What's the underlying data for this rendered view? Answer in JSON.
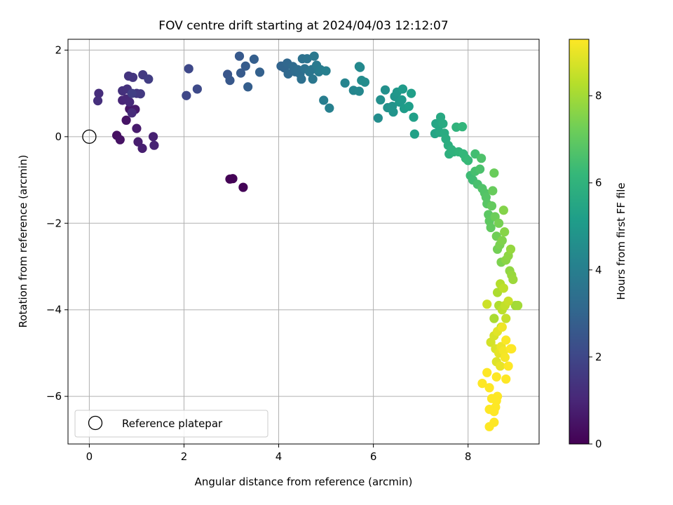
{
  "chart_data": {
    "type": "scatter",
    "title": "FOV centre drift starting at 2024/04/03 12:12:07",
    "xlabel": "Angular distance from reference (arcmin)",
    "ylabel": "Rotation from reference (arcmin)",
    "xlim": [
      -0.45,
      9.5
    ],
    "ylim": [
      -7.1,
      2.25
    ],
    "xticks": [
      0,
      2,
      4,
      6,
      8
    ],
    "yticks": [
      -6,
      -4,
      -2,
      0,
      2
    ],
    "xtick_labels": [
      "0",
      "2",
      "4",
      "6",
      "8"
    ],
    "ytick_labels": [
      "−6",
      "−4",
      "−2",
      "0",
      "2"
    ],
    "grid": true,
    "legend": {
      "placement": "lower-left",
      "entries": [
        {
          "label": "Reference platepar",
          "marker": "open-circle",
          "color": "#000000"
        }
      ]
    },
    "reference_point": {
      "x": 0,
      "y": 0
    },
    "colorbar": {
      "label": "Hours from first FF file",
      "range": [
        0,
        9.3
      ],
      "ticks": [
        0,
        2,
        4,
        6,
        8
      ],
      "tick_labels": [
        "0",
        "2",
        "4",
        "6",
        "8"
      ],
      "colormap": "viridis",
      "colors": [
        "#440154",
        "#482878",
        "#3e4989",
        "#31688e",
        "#26828e",
        "#1f9e89",
        "#35b779",
        "#6ece58",
        "#b5de2b",
        "#fde725"
      ]
    },
    "points": [
      [
        2.97,
        -0.98,
        0.02
      ],
      [
        3.03,
        -0.97,
        0.05
      ],
      [
        3.25,
        -1.17,
        0.08
      ],
      [
        0.58,
        0.03,
        0.4
      ],
      [
        0.65,
        -0.07,
        0.45
      ],
      [
        0.78,
        0.38,
        0.5
      ],
      [
        0.85,
        0.64,
        0.55
      ],
      [
        0.9,
        0.6,
        0.6
      ],
      [
        0.97,
        0.63,
        0.65
      ],
      [
        1.0,
        0.19,
        0.7
      ],
      [
        1.03,
        -0.12,
        0.75
      ],
      [
        1.12,
        -0.27,
        0.8
      ],
      [
        1.35,
        0.0,
        0.85
      ],
      [
        1.37,
        -0.2,
        0.9
      ],
      [
        0.7,
        0.84,
        1.0
      ],
      [
        0.78,
        0.87,
        1.05
      ],
      [
        0.85,
        0.8,
        1.1
      ],
      [
        0.9,
        0.55,
        1.15
      ],
      [
        0.2,
        1.0,
        1.2
      ],
      [
        0.18,
        0.83,
        1.25
      ],
      [
        0.7,
        1.06,
        1.3
      ],
      [
        0.8,
        1.1,
        1.35
      ],
      [
        0.83,
        1.4,
        1.4
      ],
      [
        0.92,
        1.37,
        1.45
      ],
      [
        1.0,
        1.0,
        1.5
      ],
      [
        1.08,
        0.99,
        1.55
      ],
      [
        1.13,
        1.43,
        1.6
      ],
      [
        1.25,
        1.33,
        1.7
      ],
      [
        0.9,
        1.0,
        1.75
      ],
      [
        2.05,
        0.95,
        2.0
      ],
      [
        2.1,
        1.57,
        2.05
      ],
      [
        2.28,
        1.1,
        2.1
      ],
      [
        2.92,
        1.44,
        2.5
      ],
      [
        2.97,
        1.3,
        2.55
      ],
      [
        3.17,
        1.86,
        2.6
      ],
      [
        3.2,
        1.47,
        2.65
      ],
      [
        3.3,
        1.63,
        2.7
      ],
      [
        3.35,
        1.15,
        2.75
      ],
      [
        3.48,
        1.79,
        2.8
      ],
      [
        3.6,
        1.49,
        2.85
      ],
      [
        4.05,
        1.63,
        3.0
      ],
      [
        4.12,
        1.59,
        3.05
      ],
      [
        4.18,
        1.7,
        3.1
      ],
      [
        4.2,
        1.45,
        3.15
      ],
      [
        4.3,
        1.62,
        3.2
      ],
      [
        4.35,
        1.5,
        3.25
      ],
      [
        4.4,
        1.55,
        3.3
      ],
      [
        4.45,
        1.45,
        3.35
      ],
      [
        4.48,
        1.33,
        3.4
      ],
      [
        4.5,
        1.8,
        3.45
      ],
      [
        4.55,
        1.57,
        3.5
      ],
      [
        4.6,
        1.8,
        3.55
      ],
      [
        4.65,
        1.5,
        3.6
      ],
      [
        4.7,
        1.55,
        3.65
      ],
      [
        4.72,
        1.33,
        3.7
      ],
      [
        4.75,
        1.86,
        3.75
      ],
      [
        4.8,
        1.65,
        3.8
      ],
      [
        4.85,
        1.5,
        3.85
      ],
      [
        4.88,
        1.55,
        3.9
      ],
      [
        4.95,
        0.84,
        3.95
      ],
      [
        5.0,
        1.52,
        4.0
      ],
      [
        5.07,
        0.66,
        4.05
      ],
      [
        5.4,
        1.24,
        4.2
      ],
      [
        5.58,
        1.07,
        4.25
      ],
      [
        5.7,
        1.05,
        4.3
      ],
      [
        5.7,
        1.62,
        4.35
      ],
      [
        5.72,
        1.6,
        4.4
      ],
      [
        5.75,
        1.3,
        4.45
      ],
      [
        5.82,
        1.26,
        4.5
      ],
      [
        6.1,
        0.43,
        4.55
      ],
      [
        6.15,
        0.85,
        4.6
      ],
      [
        6.25,
        1.08,
        4.65
      ],
      [
        6.3,
        0.67,
        4.7
      ],
      [
        6.4,
        0.7,
        4.75
      ],
      [
        6.42,
        0.57,
        4.8
      ],
      [
        6.45,
        0.93,
        4.85
      ],
      [
        6.5,
        1.03,
        4.9
      ],
      [
        6.55,
        0.8,
        4.95
      ],
      [
        6.6,
        0.85,
        5.0
      ],
      [
        6.62,
        1.1,
        5.05
      ],
      [
        6.65,
        0.65,
        5.1
      ],
      [
        6.75,
        0.7,
        5.15
      ],
      [
        6.8,
        1.0,
        5.2
      ],
      [
        6.85,
        0.45,
        5.25
      ],
      [
        6.87,
        0.06,
        5.3
      ],
      [
        7.3,
        0.07,
        5.4
      ],
      [
        7.32,
        0.3,
        5.45
      ],
      [
        7.38,
        0.25,
        5.5
      ],
      [
        7.4,
        0.1,
        5.55
      ],
      [
        7.42,
        0.45,
        5.6
      ],
      [
        7.47,
        0.3,
        5.65
      ],
      [
        7.5,
        0.08,
        5.7
      ],
      [
        7.53,
        -0.05,
        5.75
      ],
      [
        7.58,
        -0.2,
        5.8
      ],
      [
        7.6,
        -0.4,
        5.85
      ],
      [
        7.65,
        -0.3,
        5.9
      ],
      [
        7.7,
        -0.35,
        5.95
      ],
      [
        7.75,
        0.22,
        6.0
      ],
      [
        7.8,
        -0.35,
        6.05
      ],
      [
        7.88,
        0.23,
        6.1
      ],
      [
        7.9,
        -0.4,
        6.15
      ],
      [
        7.95,
        -0.5,
        6.2
      ],
      [
        8.0,
        -0.55,
        6.25
      ],
      [
        8.05,
        -0.9,
        6.35
      ],
      [
        8.1,
        -1.0,
        6.4
      ],
      [
        8.15,
        -0.4,
        6.45
      ],
      [
        8.15,
        -0.8,
        6.5
      ],
      [
        8.2,
        -1.1,
        6.55
      ],
      [
        8.25,
        -0.75,
        6.6
      ],
      [
        8.28,
        -0.5,
        6.65
      ],
      [
        8.3,
        -1.2,
        6.7
      ],
      [
        8.35,
        -1.3,
        6.75
      ],
      [
        8.38,
        -1.4,
        6.8
      ],
      [
        8.4,
        -1.55,
        6.85
      ],
      [
        8.43,
        -1.8,
        6.9
      ],
      [
        8.45,
        -1.95,
        6.95
      ],
      [
        8.48,
        -2.1,
        7.0
      ],
      [
        8.5,
        -1.6,
        7.05
      ],
      [
        8.52,
        -1.25,
        7.1
      ],
      [
        8.55,
        -0.84,
        7.15
      ],
      [
        8.57,
        -1.85,
        7.2
      ],
      [
        8.6,
        -2.3,
        7.25
      ],
      [
        8.62,
        -2.6,
        7.3
      ],
      [
        8.65,
        -2.0,
        7.35
      ],
      [
        8.67,
        -2.5,
        7.4
      ],
      [
        8.7,
        -2.9,
        7.45
      ],
      [
        8.72,
        -2.4,
        7.5
      ],
      [
        8.75,
        -1.7,
        7.55
      ],
      [
        8.77,
        -2.2,
        7.6
      ],
      [
        8.8,
        -2.85,
        7.65
      ],
      [
        8.85,
        -2.75,
        7.7
      ],
      [
        8.88,
        -3.1,
        7.75
      ],
      [
        8.9,
        -2.6,
        7.8
      ],
      [
        8.92,
        -3.2,
        7.85
      ],
      [
        8.95,
        -3.3,
        7.9
      ],
      [
        9.0,
        -3.9,
        7.95
      ],
      [
        9.05,
        -3.9,
        8.0
      ],
      [
        8.55,
        -4.2,
        8.1
      ],
      [
        8.62,
        -3.6,
        8.15
      ],
      [
        8.65,
        -3.9,
        8.2
      ],
      [
        8.68,
        -3.4,
        8.25
      ],
      [
        8.7,
        -4.4,
        8.3
      ],
      [
        8.72,
        -4.0,
        8.35
      ],
      [
        8.75,
        -3.5,
        8.4
      ],
      [
        8.78,
        -3.9,
        8.45
      ],
      [
        8.8,
        -4.2,
        8.5
      ],
      [
        8.85,
        -3.8,
        8.55
      ],
      [
        8.4,
        -3.87,
        8.6
      ],
      [
        8.48,
        -4.75,
        8.7
      ],
      [
        8.55,
        -4.6,
        8.75
      ],
      [
        8.58,
        -4.9,
        8.8
      ],
      [
        8.6,
        -5.2,
        8.85
      ],
      [
        8.62,
        -4.5,
        8.9
      ],
      [
        8.65,
        -5.0,
        8.95
      ],
      [
        8.68,
        -5.3,
        9.0
      ],
      [
        8.7,
        -4.85,
        9.05
      ],
      [
        8.72,
        -4.4,
        9.1
      ],
      [
        8.75,
        -4.95,
        9.15
      ],
      [
        8.78,
        -5.1,
        9.2
      ],
      [
        8.8,
        -4.7,
        9.25
      ],
      [
        8.85,
        -5.3,
        9.3
      ],
      [
        8.9,
        -4.9,
        9.35
      ],
      [
        8.92,
        -4.9,
        9.4
      ],
      [
        8.4,
        -5.45,
        9.5
      ],
      [
        8.3,
        -5.7,
        9.55
      ],
      [
        8.45,
        -5.8,
        9.6
      ],
      [
        8.6,
        -5.55,
        9.62
      ],
      [
        8.8,
        -5.6,
        9.64
      ],
      [
        8.62,
        -6.0,
        9.66
      ],
      [
        8.58,
        -6.25,
        9.68
      ],
      [
        8.55,
        -6.35,
        9.7
      ],
      [
        8.5,
        -6.05,
        9.72
      ],
      [
        8.45,
        -6.3,
        9.74
      ],
      [
        8.55,
        -6.6,
        9.76
      ],
      [
        8.45,
        -6.7,
        9.78
      ],
      [
        8.6,
        -6.1,
        9.8
      ]
    ]
  }
}
